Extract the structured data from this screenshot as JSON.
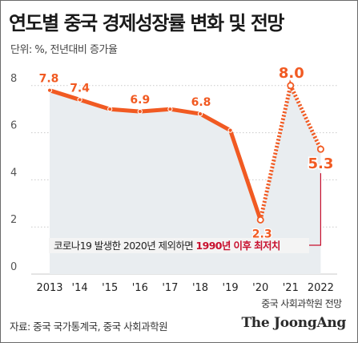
{
  "header": {
    "title": "연도별 중국 경제성장률 변화 및 전망",
    "unit": "단위: %, 전년대비 증가율"
  },
  "footer": {
    "source": "자료: 중국 국가통계국, 중국 사회과학원",
    "brand": "The JoongAng"
  },
  "chart_data": {
    "type": "line",
    "title": "연도별 중국 경제성장률 변화 및 전망",
    "ylabel": "단위: %, 전년대비 증가율",
    "categories": [
      "2013",
      "'14",
      "'15",
      "'16",
      "'17",
      "'18",
      "'19",
      "'20",
      "'21",
      "2022"
    ],
    "values": [
      7.8,
      7.4,
      7.0,
      6.9,
      7.0,
      6.8,
      6.1,
      2.3,
      8.0,
      5.3
    ],
    "data_labels": [
      {
        "index": 0,
        "text": "7.8"
      },
      {
        "index": 1,
        "text": "7.4"
      },
      {
        "index": 3,
        "text": "6.9"
      },
      {
        "index": 5,
        "text": "6.8"
      },
      {
        "index": 7,
        "text": "2.3"
      },
      {
        "index": 8,
        "text": "8.0"
      },
      {
        "index": 9,
        "text": "5.3"
      }
    ],
    "forecast_from_index": 8,
    "forecast_note": "중국 사회과학원 전망",
    "annotation_prefix": "코로나19 발생한 2020년 제외하면 ",
    "annotation_highlight": "1990년 이후 최저치",
    "yticks": [
      0,
      2,
      4,
      6,
      8
    ],
    "ylim": [
      0,
      9.2
    ],
    "grid": true,
    "colors": {
      "line": "#f15a22",
      "area": "#e9edf0",
      "grid": "#c9c9c9",
      "highlight": "#c8102e",
      "annotation_bg": "#f4f4f4"
    }
  }
}
